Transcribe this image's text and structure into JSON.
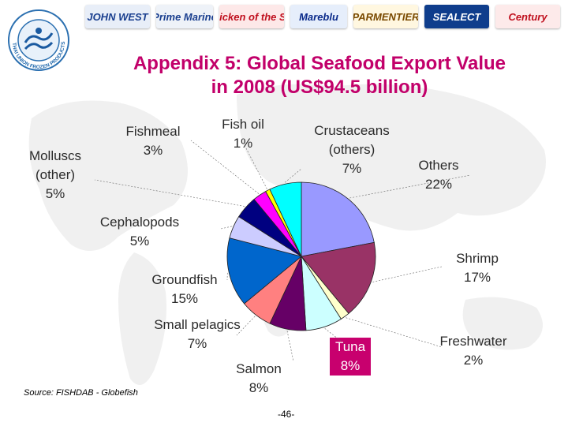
{
  "header": {
    "brands": [
      {
        "label": "JOHN WEST",
        "bg": "#e8eef8",
        "color": "#1a3f8f"
      },
      {
        "label": "Prime Marine",
        "bg": "#eef2f8",
        "color": "#1a3f8f"
      },
      {
        "label": "Chicken of the Sea",
        "bg": "#fde8e8",
        "color": "#c0101e"
      },
      {
        "label": "Mareblu",
        "bg": "#e6eefb",
        "color": "#0a2a8a"
      },
      {
        "label": "PARMENTIER",
        "bg": "#fff7e0",
        "color": "#7a4a00"
      },
      {
        "label": "SEALECT",
        "bg": "#0f3d8c",
        "color": "#ffffff"
      },
      {
        "label": "Century",
        "bg": "#fdeaea",
        "color": "#c0101e"
      }
    ],
    "logo_text": "THAI UNION FROZEN PRODUCTS PCL"
  },
  "page_title": "Appendix 5: Global Seafood Export Value\nin 2008 (US$94.5 billion)",
  "chart_data": {
    "type": "pie",
    "title": "Appendix 5: Global Seafood Export Value in 2008 (US$94.5 billion)",
    "unit": "%",
    "slices": [
      {
        "label": "Others",
        "value": 22,
        "color": "#9999ff"
      },
      {
        "label": "Shrimp",
        "value": 17,
        "color": "#993366"
      },
      {
        "label": "Freshwater",
        "value": 2,
        "color": "#ffffcc"
      },
      {
        "label": "Tuna",
        "value": 8,
        "color": "#ccffff"
      },
      {
        "label": "Salmon",
        "value": 8,
        "color": "#660066"
      },
      {
        "label": "Small pelagics",
        "value": 7,
        "color": "#ff8080"
      },
      {
        "label": "Groundfish",
        "value": 15,
        "color": "#0066cc"
      },
      {
        "label": "Cephalopods",
        "value": 5,
        "color": "#ccccff"
      },
      {
        "label": "Molluscs (other)",
        "value": 5,
        "color": "#000080"
      },
      {
        "label": "Fishmeal",
        "value": 3,
        "color": "#ff00ff"
      },
      {
        "label": "Fish oil",
        "value": 1,
        "color": "#ffff00"
      },
      {
        "label": "Crustaceans (others)",
        "value": 7,
        "color": "#00ffff"
      }
    ],
    "labels": {
      "others": "Others\n22%",
      "shrimp": "Shrimp\n17%",
      "freshwater": "Freshwater\n2%",
      "tuna": "Tuna\n8%",
      "salmon": "Salmon\n8%",
      "small_pelagics": "Small pelagics\n7%",
      "groundfish": "Groundfish\n15%",
      "cephalopods": "Cephalopods\n5%",
      "molluscs": "Molluscs\n(other)\n5%",
      "fishmeal": "Fishmeal\n3%",
      "fish_oil": "Fish oil\n1%",
      "crustaceans": "Crustaceans\n(others)\n7%"
    }
  },
  "source": "Source: FISHDAB - Globefish",
  "page_number": "-46-"
}
